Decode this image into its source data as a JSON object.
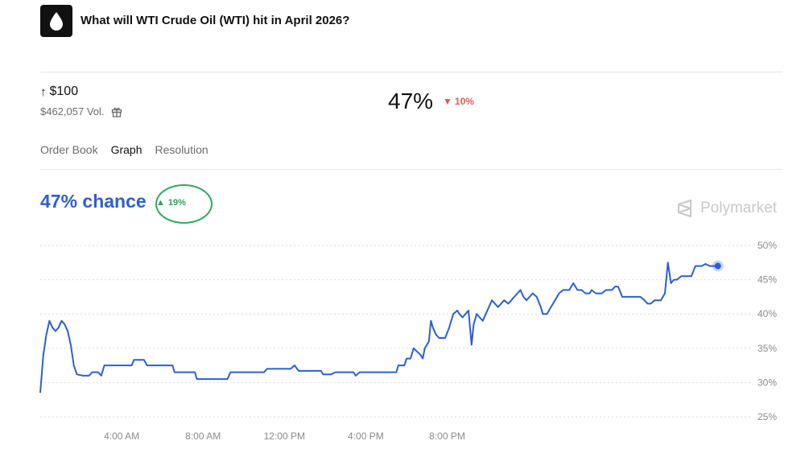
{
  "header": {
    "title": "What will WTI Crude Oil (WTI) hit in April 2026?",
    "icon": "droplet-icon"
  },
  "market": {
    "outcome_arrow": "↑",
    "outcome": "$100",
    "volume": "$462,057 Vol.",
    "price": "47%",
    "change": "10%",
    "change_direction": "down",
    "change_color": "#e05a5a"
  },
  "tabs": [
    {
      "label": "Order Book",
      "active": false
    },
    {
      "label": "Graph",
      "active": true
    },
    {
      "label": "Resolution",
      "active": false
    }
  ],
  "chart_header": {
    "chance": "47% chance",
    "delta": "19%",
    "delta_direction": "up",
    "delta_color": "#2e9e5a",
    "brand": "Polymarket"
  },
  "chart_data": {
    "type": "line",
    "series": [
      {
        "color": "#2b5fd0",
        "points": [
          [
            0.0,
            28.5
          ],
          [
            0.15,
            34
          ],
          [
            0.3,
            37
          ],
          [
            0.45,
            39
          ],
          [
            0.6,
            38
          ],
          [
            0.75,
            37.5
          ],
          [
            0.9,
            38
          ],
          [
            1.05,
            39
          ],
          [
            1.2,
            38.5
          ],
          [
            1.35,
            37.5
          ],
          [
            1.5,
            35.5
          ],
          [
            1.65,
            32.5
          ],
          [
            1.8,
            31.2
          ],
          [
            2.1,
            31
          ],
          [
            2.4,
            31
          ],
          [
            2.55,
            31.5
          ],
          [
            2.85,
            31.5
          ],
          [
            3.0,
            31
          ],
          [
            3.15,
            32.5
          ],
          [
            4.3,
            32.5
          ],
          [
            4.5,
            32.5
          ],
          [
            4.6,
            33.3
          ],
          [
            5.1,
            33.3
          ],
          [
            5.25,
            32.5
          ],
          [
            6.5,
            32.5
          ],
          [
            6.6,
            31.5
          ],
          [
            7.6,
            31.5
          ],
          [
            7.7,
            30.5
          ],
          [
            9.2,
            30.5
          ],
          [
            9.35,
            31.5
          ],
          [
            11.0,
            31.5
          ],
          [
            11.15,
            32
          ],
          [
            12.3,
            32
          ],
          [
            12.5,
            32.5
          ],
          [
            12.7,
            31.7
          ],
          [
            13.8,
            31.7
          ],
          [
            13.9,
            31.2
          ],
          [
            14.3,
            31.2
          ],
          [
            14.5,
            31.5
          ],
          [
            15.4,
            31.5
          ],
          [
            15.5,
            31
          ],
          [
            15.7,
            31.5
          ],
          [
            17.5,
            31.5
          ],
          [
            17.6,
            32.5
          ],
          [
            17.9,
            32.5
          ],
          [
            18.0,
            33.5
          ],
          [
            18.2,
            33.5
          ],
          [
            18.35,
            35
          ],
          [
            18.7,
            34
          ],
          [
            18.8,
            33.5
          ],
          [
            18.9,
            35
          ],
          [
            19.1,
            36
          ],
          [
            19.2,
            39
          ],
          [
            19.3,
            38
          ],
          [
            19.45,
            37
          ],
          [
            19.6,
            36.5
          ],
          [
            19.9,
            36.5
          ],
          [
            20.1,
            38
          ],
          [
            20.3,
            40
          ],
          [
            20.5,
            40.5
          ],
          [
            20.6,
            40
          ],
          [
            20.75,
            39.5
          ],
          [
            20.9,
            40
          ],
          [
            21.05,
            40.5
          ],
          [
            21.2,
            35.5
          ],
          [
            21.3,
            38.5
          ],
          [
            21.45,
            40
          ],
          [
            21.6,
            39.5
          ],
          [
            21.75,
            39
          ],
          [
            21.9,
            40
          ],
          [
            22.05,
            41
          ],
          [
            22.2,
            42
          ],
          [
            22.35,
            41.5
          ],
          [
            22.5,
            41
          ],
          [
            22.65,
            41.5
          ],
          [
            22.8,
            42
          ],
          [
            23.0,
            41.5
          ],
          [
            23.15,
            42
          ],
          [
            23.3,
            42.5
          ],
          [
            23.45,
            43
          ],
          [
            23.6,
            43.5
          ],
          [
            23.75,
            42.5
          ],
          [
            23.9,
            42
          ],
          [
            24.05,
            42.5
          ],
          [
            24.2,
            43
          ],
          [
            24.4,
            42.5
          ],
          [
            24.6,
            41
          ],
          [
            24.7,
            40
          ],
          [
            24.9,
            40
          ],
          [
            25.1,
            41
          ],
          [
            25.3,
            42
          ],
          [
            25.5,
            43
          ],
          [
            25.7,
            43.5
          ],
          [
            26.0,
            43.5
          ],
          [
            26.2,
            44.5
          ],
          [
            26.4,
            43.5
          ],
          [
            26.6,
            43.5
          ],
          [
            26.8,
            43
          ],
          [
            27.0,
            43
          ],
          [
            27.1,
            43.5
          ],
          [
            27.3,
            43
          ],
          [
            27.6,
            43
          ],
          [
            27.8,
            43.5
          ],
          [
            28.1,
            43.5
          ],
          [
            28.25,
            44
          ],
          [
            28.4,
            44
          ],
          [
            28.5,
            43.3
          ],
          [
            28.6,
            42.5
          ],
          [
            29.2,
            42.5
          ],
          [
            29.5,
            42.5
          ],
          [
            29.7,
            42
          ],
          [
            29.85,
            41.5
          ],
          [
            30.0,
            41.5
          ],
          [
            30.2,
            42
          ],
          [
            30.5,
            42
          ],
          [
            30.7,
            43
          ],
          [
            30.85,
            47.5
          ],
          [
            31.0,
            44.5
          ],
          [
            31.15,
            45
          ],
          [
            31.3,
            45
          ],
          [
            31.5,
            45.5
          ],
          [
            31.7,
            45.5
          ],
          [
            32.0,
            45.5
          ],
          [
            32.2,
            47
          ],
          [
            32.5,
            47
          ],
          [
            32.7,
            47.3
          ],
          [
            32.9,
            47
          ],
          [
            33.3,
            47
          ]
        ]
      }
    ],
    "xlim": [
      0,
      34.5
    ],
    "ylim": [
      25,
      50
    ],
    "x_ticks": [
      {
        "value": 4,
        "label": "4:00 AM"
      },
      {
        "value": 8,
        "label": "8:00 AM"
      },
      {
        "value": 12,
        "label": "12:00 PM"
      },
      {
        "value": 16,
        "label": "4:00 PM"
      },
      {
        "value": 20,
        "label": "8:00 PM"
      }
    ],
    "y_ticks": [
      {
        "value": 50,
        "label": "50%"
      },
      {
        "value": 45,
        "label": "45%"
      },
      {
        "value": 40,
        "label": "40%"
      },
      {
        "value": 35,
        "label": "35%"
      },
      {
        "value": 30,
        "label": "30%"
      },
      {
        "value": 25,
        "label": "25%"
      }
    ],
    "grid": true,
    "grid_style": "dotted"
  }
}
